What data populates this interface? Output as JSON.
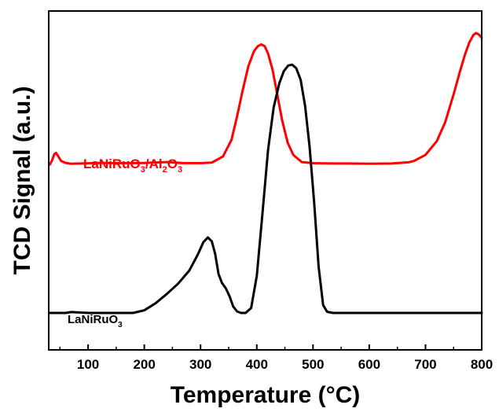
{
  "chart_data": {
    "type": "line",
    "title": "",
    "xlabel": "Temperature (°C)",
    "ylabel": "TCD Signal (a.u.)",
    "xlim": [
      30,
      800
    ],
    "xticks": [
      100,
      200,
      300,
      400,
      500,
      600,
      700,
      800
    ],
    "xtick_labels": [
      "100",
      "200",
      "300",
      "400",
      "500",
      "600",
      "700",
      "800"
    ],
    "ylim": [
      0,
      100
    ],
    "grid": false,
    "legend": "none",
    "series": [
      {
        "name_parts": [
          {
            "text": "LaNiRuO",
            "sub": false
          },
          {
            "text": "3",
            "sub": true
          },
          {
            "text": "/Al",
            "sub": false
          },
          {
            "text": "2",
            "sub": true
          },
          {
            "text": "O",
            "sub": false
          },
          {
            "text": "3",
            "sub": true
          }
        ],
        "color": "#ff0000",
        "x": [
          32,
          36,
          40,
          43,
          47,
          52,
          60,
          70,
          90,
          120,
          160,
          200,
          240,
          270,
          300,
          320,
          340,
          355,
          365,
          375,
          385,
          395,
          402,
          408,
          414,
          420,
          428,
          436,
          445,
          455,
          465,
          480,
          500,
          530,
          560,
          600,
          640,
          670,
          680,
          700,
          720,
          735,
          750,
          760,
          770,
          778,
          785,
          790,
          795,
          800
        ],
        "y": [
          55.0,
          56.5,
          58.6,
          59.0,
          57.8,
          56.3,
          55.6,
          55.3,
          55.4,
          55.6,
          55.5,
          55.6,
          55.9,
          55.5,
          55.5,
          55.7,
          57.8,
          63.5,
          71.5,
          80.5,
          88.6,
          93.8,
          95.5,
          96.1,
          95.5,
          93.0,
          87.5,
          79.5,
          70.2,
          62.5,
          58.3,
          55.9,
          55.5,
          55.4,
          55.4,
          55.3,
          55.4,
          55.8,
          56.3,
          58.3,
          63.0,
          69.5,
          79.0,
          86.0,
          92.5,
          96.8,
          99.3,
          100.0,
          99.5,
          98.4
        ]
      },
      {
        "name_parts": [
          {
            "text": "LaNiRuO",
            "sub": false
          },
          {
            "text": "3",
            "sub": true
          }
        ],
        "color": "#000000",
        "x": [
          32,
          60,
          70,
          100,
          150,
          180,
          200,
          220,
          240,
          260,
          280,
          295,
          305,
          313,
          320,
          326,
          332,
          338,
          345,
          352,
          358,
          365,
          372,
          380,
          390,
          400,
          410,
          420,
          430,
          440,
          448,
          456,
          463,
          470,
          478,
          486,
          494,
          502,
          510,
          518,
          525,
          535,
          560,
          600,
          700,
          800
        ],
        "y": [
          4.3,
          4.3,
          4.6,
          4.3,
          4.3,
          4.3,
          5.2,
          7.6,
          10.8,
          14.3,
          18.8,
          24.2,
          28.5,
          30.1,
          28.8,
          24.5,
          17.6,
          14.6,
          12.7,
          9.8,
          6.5,
          4.8,
          4.3,
          4.3,
          6.0,
          17.0,
          38.0,
          60.0,
          74.5,
          82.8,
          86.9,
          88.9,
          89.2,
          88.0,
          84.0,
          75.0,
          61.0,
          42.0,
          20.0,
          7.0,
          4.7,
          4.3,
          4.3,
          4.3,
          4.3,
          4.3
        ]
      }
    ]
  }
}
